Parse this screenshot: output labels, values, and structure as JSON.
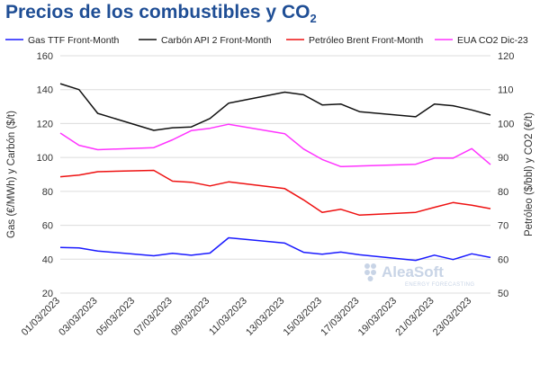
{
  "title": {
    "main": "Precios de los combustibles y CO",
    "subscript": "2"
  },
  "logo": {
    "name": "AleaSoft",
    "tagline": "ENERGY FORECASTING"
  },
  "chart_data": {
    "type": "line",
    "xlabel": "",
    "ylabel_left": "Gas (€/MWh) y Carbón ($/t)",
    "ylabel_right": "Petróleo ($/bbl) y CO2 (€/t)",
    "ylim_left": [
      20,
      160
    ],
    "ylim_right": [
      50,
      120
    ],
    "yticks_left": [
      20,
      40,
      60,
      80,
      100,
      120,
      140,
      160
    ],
    "yticks_right": [
      50,
      60,
      70,
      80,
      90,
      100,
      110,
      120
    ],
    "grid": true,
    "legend_position": "top",
    "x": [
      "01/03/2023",
      "02/03/2023",
      "03/03/2023",
      "06/03/2023",
      "07/03/2023",
      "08/03/2023",
      "09/03/2023",
      "10/03/2023",
      "13/03/2023",
      "14/03/2023",
      "15/03/2023",
      "16/03/2023",
      "17/03/2023",
      "20/03/2023",
      "21/03/2023",
      "22/03/2023",
      "23/03/2023",
      "24/03/2023"
    ],
    "xticks": [
      "01/03/2023",
      "03/03/2023",
      "05/03/2023",
      "07/03/2023",
      "09/03/2023",
      "11/03/2023",
      "13/03/2023",
      "15/03/2023",
      "17/03/2023",
      "19/03/2023",
      "21/03/2023",
      "23/03/2023"
    ],
    "series": [
      {
        "name": "Gas TTF Front-Month",
        "axis": "left",
        "color": "#1a1aff",
        "values": [
          46.9,
          46.6,
          44.8,
          42.0,
          43.5,
          42.3,
          43.6,
          52.6,
          49.5,
          44.1,
          42.9,
          44.2,
          42.6,
          39.3,
          42.4,
          39.8,
          43.2,
          41.0
        ]
      },
      {
        "name": "Carbón API 2 Front-Month",
        "axis": "left",
        "color": "#111111",
        "values": [
          143.5,
          140.0,
          126.0,
          116.0,
          117.5,
          118.0,
          123.0,
          132.0,
          138.5,
          137.0,
          131.0,
          131.5,
          127.0,
          124.0,
          131.5,
          130.5,
          128.0,
          125.0
        ]
      },
      {
        "name": "Petróleo Brent Front-Month",
        "axis": "right",
        "color": "#ee1111",
        "values": [
          84.3,
          84.8,
          85.8,
          86.2,
          83.0,
          82.7,
          81.6,
          82.8,
          80.8,
          77.5,
          73.8,
          74.7,
          73.0,
          73.8,
          75.3,
          76.7,
          75.9,
          74.9
        ]
      },
      {
        "name": "EUA CO2 Dic-23",
        "axis": "right",
        "color": "#ff33ff",
        "values": [
          97.2,
          93.6,
          92.3,
          92.9,
          95.2,
          97.9,
          98.6,
          99.8,
          97.0,
          92.5,
          89.4,
          87.3,
          87.5,
          88.0,
          89.8,
          89.8,
          92.6,
          87.9
        ]
      }
    ]
  }
}
